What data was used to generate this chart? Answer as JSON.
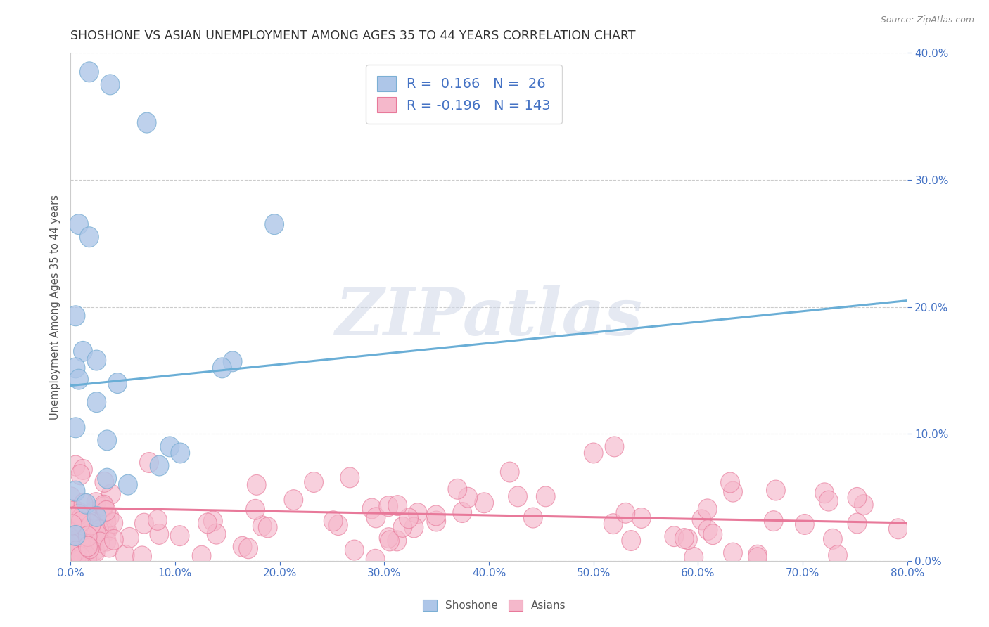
{
  "title": "SHOSHONE VS ASIAN UNEMPLOYMENT AMONG AGES 35 TO 44 YEARS CORRELATION CHART",
  "source": "Source: ZipAtlas.com",
  "xlim": [
    0.0,
    0.8
  ],
  "ylim": [
    -0.01,
    0.42
  ],
  "ylim_display": [
    0.0,
    0.4
  ],
  "shoshone_color": "#aec6e8",
  "shoshone_edge_color": "#7bafd4",
  "asian_color": "#f5b8cb",
  "asian_edge_color": "#e8799a",
  "shoshone_line_color": "#6aaed6",
  "asian_line_color": "#e8799a",
  "R_shoshone": 0.166,
  "N_shoshone": 26,
  "R_asian": -0.196,
  "N_asian": 143,
  "watermark": "ZIPatlas",
  "background_color": "#ffffff",
  "grid_color": "#cccccc",
  "title_color": "#333333",
  "tick_color": "#4472c4",
  "legend_text_color": "#4472c4",
  "shoshone_x": [
    0.018,
    0.038,
    0.073,
    0.008,
    0.018,
    0.005,
    0.012,
    0.025,
    0.005,
    0.008,
    0.045,
    0.025,
    0.005,
    0.035,
    0.095,
    0.105,
    0.085,
    0.035,
    0.055,
    0.195,
    0.005,
    0.015,
    0.025,
    0.005,
    0.155,
    0.145
  ],
  "shoshone_y": [
    0.385,
    0.375,
    0.345,
    0.265,
    0.255,
    0.193,
    0.165,
    0.158,
    0.152,
    0.143,
    0.14,
    0.125,
    0.105,
    0.095,
    0.09,
    0.085,
    0.075,
    0.065,
    0.06,
    0.265,
    0.055,
    0.045,
    0.035,
    0.02,
    0.157,
    0.152
  ],
  "shoshone_trend_x": [
    0.0,
    0.8
  ],
  "shoshone_trend_y": [
    0.138,
    0.205
  ],
  "asian_trend_x": [
    0.0,
    0.8
  ],
  "asian_trend_y": [
    0.042,
    0.03
  ]
}
